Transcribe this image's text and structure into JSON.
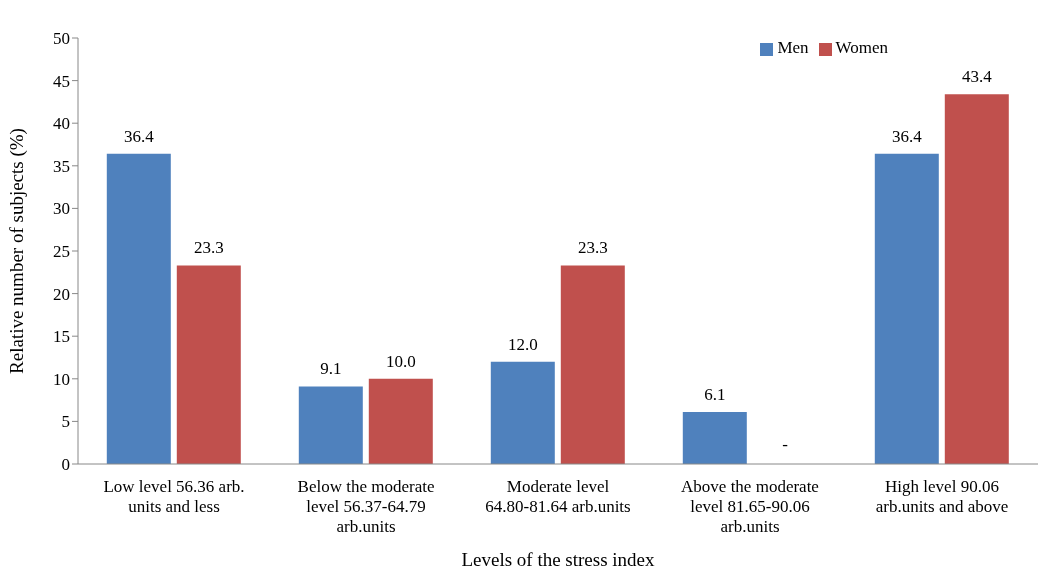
{
  "chart_data": {
    "type": "bar",
    "xlabel": "Levels of the stress index",
    "ylabel": "Relative number of subjects (%)",
    "categories": [
      "Low level 56.36 arb. units and less",
      "Below the moderate level 56.37-64.79 arb.units",
      "Moderate level 64.80-81.64 arb.units",
      "Above the moderate level 81.65-90.06 arb.units",
      "High level 90.06 arb.units and above"
    ],
    "series": [
      {
        "name": "Men",
        "color": "#4f81bd",
        "values": [
          36.4,
          9.1,
          12.0,
          6.1,
          36.4
        ],
        "value_labels": [
          "36.4",
          "9.1",
          "12.0",
          "6.1",
          "36.4"
        ]
      },
      {
        "name": "Women",
        "color": "#c0504d",
        "values": [
          23.3,
          10.0,
          23.3,
          null,
          43.4
        ],
        "value_labels": [
          "23.3",
          "10.0",
          "23.3",
          "-",
          "43.4"
        ]
      }
    ],
    "ylim": [
      0,
      50
    ],
    "yticks": [
      0,
      5,
      10,
      15,
      20,
      25,
      30,
      35,
      40,
      45,
      50
    ],
    "legend": "top right"
  }
}
